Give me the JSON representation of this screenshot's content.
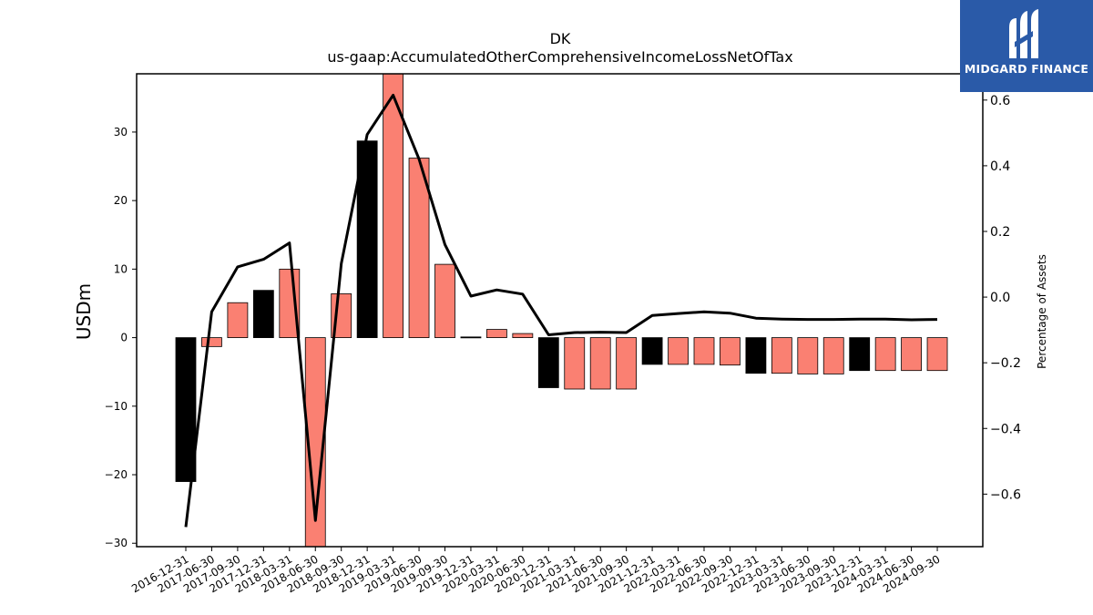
{
  "chart_data": {
    "type": "bar+line",
    "title": "DK",
    "subtitle": "us-gaap:AccumulatedOtherComprehensiveIncomeLossNetOfTax",
    "ylabel": "USDm",
    "y2label": "Percentage of Assets",
    "ylim": [
      -30.5,
      38.5
    ],
    "y2lim": [
      -0.76,
      0.68
    ],
    "yticks": [
      -30,
      -20,
      -10,
      0,
      10,
      20,
      30
    ],
    "y2ticks": [
      -0.6,
      -0.4,
      -0.2,
      0.0,
      0.2,
      0.4,
      0.6
    ],
    "categories": [
      "2016-12-31",
      "2017-06-30",
      "2017-09-30",
      "2017-12-31",
      "2018-03-31",
      "2018-06-30",
      "2018-09-30",
      "2018-12-31",
      "2019-03-31",
      "2019-06-30",
      "2019-09-30",
      "2019-12-31",
      "2020-03-31",
      "2020-06-30",
      "2020-12-31",
      "2021-03-31",
      "2021-06-30",
      "2021-09-30",
      "2021-12-31",
      "2022-03-31",
      "2022-06-30",
      "2022-09-30",
      "2022-12-31",
      "2023-03-31",
      "2023-06-30",
      "2023-09-30",
      "2023-12-31",
      "2024-03-31",
      "2024-06-30",
      "2024-09-30"
    ],
    "series": [
      {
        "type": "bar",
        "values": [
          -21.0,
          -1.3,
          5.1,
          6.9,
          10.0,
          -33.0,
          6.4,
          28.7,
          41.0,
          26.2,
          10.7,
          0.1,
          1.2,
          0.6,
          -7.3,
          -7.5,
          -7.5,
          -7.5,
          -3.9,
          -3.9,
          -3.9,
          -4.0,
          -5.2,
          -5.2,
          -5.3,
          -5.3,
          -4.8,
          -4.8,
          -4.8,
          -4.8
        ],
        "colors": [
          "#000000",
          "#fa8072",
          "#fa8072",
          "#000000",
          "#fa8072",
          "#fa8072",
          "#fa8072",
          "#000000",
          "#fa8072",
          "#fa8072",
          "#fa8072",
          "#000000",
          "#fa8072",
          "#fa8072",
          "#000000",
          "#fa8072",
          "#fa8072",
          "#fa8072",
          "#000000",
          "#fa8072",
          "#fa8072",
          "#fa8072",
          "#000000",
          "#fa8072",
          "#fa8072",
          "#fa8072",
          "#000000",
          "#fa8072",
          "#fa8072",
          "#fa8072"
        ]
      },
      {
        "type": "line",
        "color": "#000000",
        "values": [
          -0.7,
          -0.045,
          0.092,
          0.115,
          0.165,
          -0.68,
          0.102,
          0.495,
          0.615,
          0.42,
          0.16,
          0.003,
          0.022,
          0.009,
          -0.115,
          -0.108,
          -0.107,
          -0.108,
          -0.056,
          -0.05,
          -0.045,
          -0.049,
          -0.064,
          -0.067,
          -0.068,
          -0.068,
          -0.067,
          -0.067,
          -0.069,
          -0.068
        ]
      }
    ],
    "colors": {
      "bar_primary": "#fa8072",
      "bar_highlight": "#000000",
      "line": "#000000"
    }
  },
  "logo": {
    "text": "MIDGARD FINANCE",
    "bg": "#2a5aa8"
  }
}
